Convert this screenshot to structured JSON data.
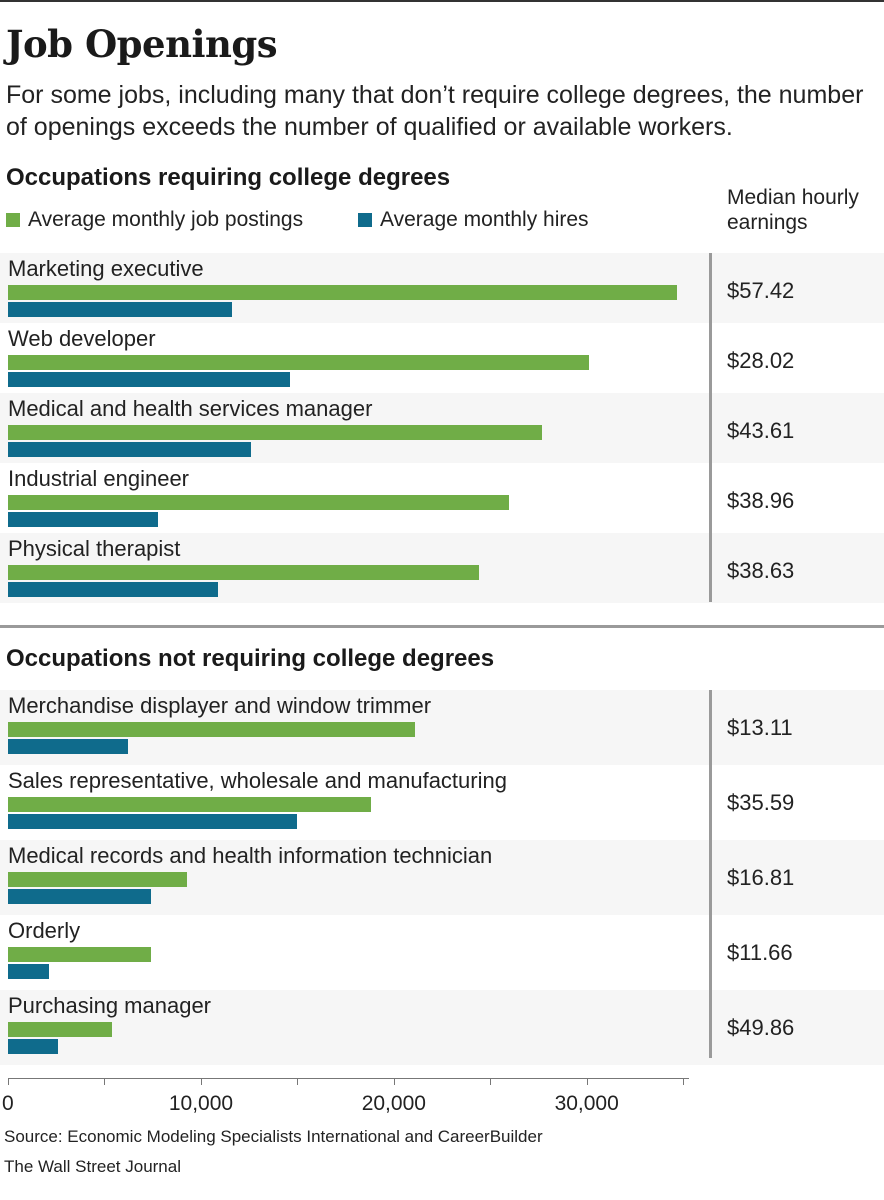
{
  "header": {
    "title": "Job Openings",
    "subtitle": "For some jobs, including many that don’t require college degrees, the number of openings exceeds the number of qualified or available workers."
  },
  "legend": {
    "postings": "Average monthly job postings",
    "hires": "Average monthly hires"
  },
  "earnings_header": {
    "line1": "Median hourly",
    "line2": "earnings"
  },
  "colors": {
    "postings": "#70ad47",
    "hires": "#0f6b8c",
    "row_shade": "#f6f6f6",
    "divider": "#9a9a9a"
  },
  "chart_data": {
    "type": "bar",
    "orientation": "horizontal",
    "title": "Job Openings",
    "xlabel": "",
    "ylabel": "",
    "xlim": [
      0,
      35000
    ],
    "xticks": [
      0,
      10000,
      20000,
      30000
    ],
    "xtick_labels": [
      "0",
      "10,000",
      "20,000",
      "30,000"
    ],
    "grid": false,
    "legend": "top-left",
    "groups": [
      {
        "name": "Occupations requiring college degrees",
        "categories": [
          "Marketing executive",
          "Web developer",
          "Medical and health services manager",
          "Industrial engineer",
          "Physical therapist"
        ],
        "series": [
          {
            "name": "Average monthly job postings",
            "values": [
              34700,
              30100,
              27700,
              26000,
              24400
            ]
          },
          {
            "name": "Average monthly hires",
            "values": [
              11600,
              14600,
              12600,
              7800,
              10900
            ]
          }
        ],
        "median_hourly_earnings": [
          "$57.42",
          "$28.02",
          "$43.61",
          "$38.96",
          "$38.63"
        ]
      },
      {
        "name": "Occupations not requiring college degrees",
        "categories": [
          "Merchandise displayer and window trimmer",
          "Sales representative, wholesale and manufacturing",
          "Medical records and health information technician",
          "Orderly",
          "Purchasing manager"
        ],
        "series": [
          {
            "name": "Average monthly job postings",
            "values": [
              21100,
              18800,
              9300,
              7400,
              5400
            ]
          },
          {
            "name": "Average monthly hires",
            "values": [
              6200,
              15000,
              7400,
              2100,
              2600
            ]
          }
        ],
        "median_hourly_earnings": [
          "$13.11",
          "$35.59",
          "$16.81",
          "$11.66",
          "$49.86"
        ]
      }
    ]
  },
  "footer": {
    "source": "Source: Economic Modeling Specialists International and CareerBuilder",
    "credit": "The Wall Street Journal"
  }
}
